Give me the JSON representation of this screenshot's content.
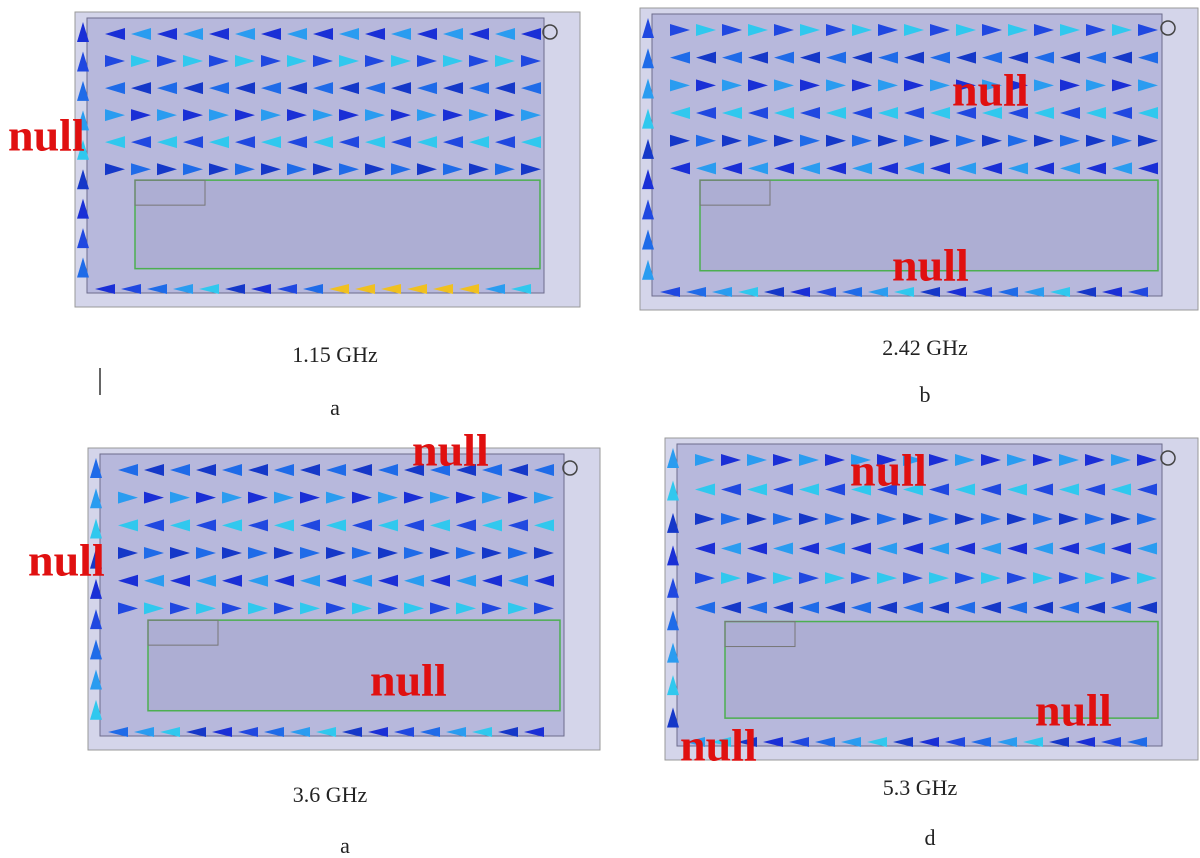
{
  "panels": [
    {
      "frequency": "1.15 GHz",
      "label": "a",
      "annotations": [
        "null"
      ]
    },
    {
      "frequency": "2.42 GHz",
      "label": "b",
      "annotations": [
        "null",
        "null"
      ]
    },
    {
      "frequency": "3.6 GHz",
      "label": "a",
      "annotations": [
        "null",
        "null",
        "null"
      ]
    },
    {
      "frequency": "5.3 GHz",
      "label": "d",
      "annotations": [
        "null",
        "null",
        "null"
      ]
    }
  ]
}
